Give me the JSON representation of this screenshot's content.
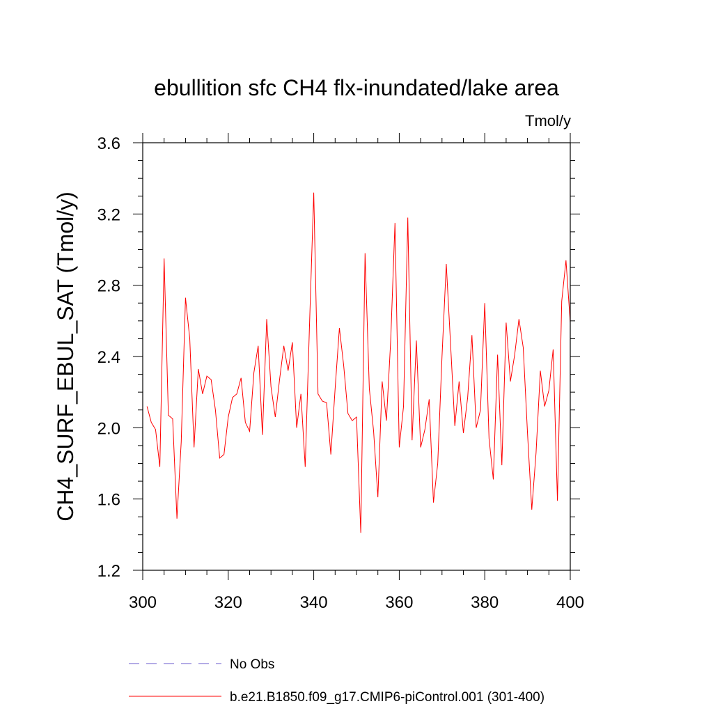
{
  "chart_data": {
    "type": "line",
    "title": "ebullition sfc CH4 flx-inundated/lake area",
    "units_label": "Tmol/y",
    "xlabel": "",
    "ylabel": "CH4_SURF_EBUL_SAT  (Tmol/y)",
    "xlim": [
      300,
      400
    ],
    "ylim": [
      1.2,
      3.6
    ],
    "x_ticks": [
      300,
      320,
      340,
      360,
      380,
      400
    ],
    "x_tick_labels": [
      "300",
      "320",
      "340",
      "360",
      "380",
      "400"
    ],
    "y_ticks": [
      1.2,
      1.6,
      2.0,
      2.4,
      2.8,
      3.2,
      3.6
    ],
    "y_tick_labels": [
      "1.2",
      "1.6",
      "2.0",
      "2.4",
      "2.8",
      "3.2",
      "3.6"
    ],
    "grid": false,
    "legend_position": "bottom",
    "series": [
      {
        "name": "No Obs",
        "color": "#6a5acd",
        "dash": "dashed",
        "values": []
      },
      {
        "name": "b.e21.B1850.f09_g17.CMIP6-piControl.001 (301-400)",
        "color": "#ff0000",
        "dash": "solid",
        "x": [
          301,
          302,
          303,
          304,
          305,
          306,
          307,
          308,
          309,
          310,
          311,
          312,
          313,
          314,
          315,
          316,
          317,
          318,
          319,
          320,
          321,
          322,
          323,
          324,
          325,
          326,
          327,
          328,
          329,
          330,
          331,
          332,
          333,
          334,
          335,
          336,
          337,
          338,
          339,
          340,
          341,
          342,
          343,
          344,
          345,
          346,
          347,
          348,
          349,
          350,
          351,
          352,
          353,
          354,
          355,
          356,
          357,
          358,
          359,
          360,
          361,
          362,
          363,
          364,
          365,
          366,
          367,
          368,
          369,
          370,
          371,
          372,
          373,
          374,
          375,
          376,
          377,
          378,
          379,
          380,
          381,
          382,
          383,
          384,
          385,
          386,
          387,
          388,
          389,
          390,
          391,
          392,
          393,
          394,
          395,
          396,
          397,
          398,
          399,
          400
        ],
        "values": [
          2.12,
          2.03,
          1.99,
          1.78,
          2.95,
          2.07,
          2.05,
          1.49,
          1.92,
          2.73,
          2.5,
          1.89,
          2.33,
          2.19,
          2.29,
          2.27,
          2.1,
          1.83,
          1.85,
          2.06,
          2.17,
          2.19,
          2.28,
          2.03,
          1.98,
          2.31,
          2.46,
          1.96,
          2.61,
          2.23,
          2.06,
          2.27,
          2.46,
          2.32,
          2.48,
          2.0,
          2.19,
          1.78,
          2.57,
          3.32,
          2.19,
          2.15,
          2.14,
          1.85,
          2.22,
          2.56,
          2.35,
          2.08,
          2.04,
          2.06,
          1.41,
          2.98,
          2.22,
          1.98,
          1.61,
          2.26,
          2.04,
          2.49,
          3.15,
          1.89,
          2.12,
          3.18,
          1.93,
          2.49,
          1.89,
          1.99,
          2.16,
          1.58,
          1.8,
          2.4,
          2.92,
          2.47,
          2.01,
          2.26,
          1.97,
          2.17,
          2.52,
          2.0,
          2.1,
          2.7,
          1.94,
          1.71,
          2.41,
          1.79,
          2.59,
          2.26,
          2.41,
          2.61,
          2.45,
          1.97,
          1.54,
          1.86,
          2.32,
          2.12,
          2.21,
          2.44,
          1.59,
          2.71,
          2.94,
          2.59
        ]
      }
    ]
  }
}
